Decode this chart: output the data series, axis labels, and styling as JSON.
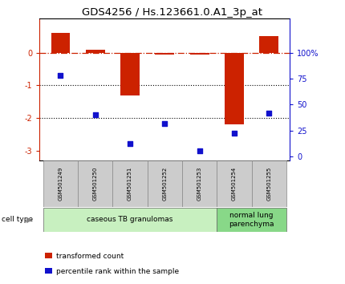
{
  "title": "GDS4256 / Hs.123661.0.A1_3p_at",
  "samples": [
    "GSM501249",
    "GSM501250",
    "GSM501251",
    "GSM501252",
    "GSM501253",
    "GSM501254",
    "GSM501255"
  ],
  "transformed_count": [
    0.6,
    0.08,
    -1.3,
    -0.05,
    -0.05,
    -2.2,
    0.5
  ],
  "percentile_rank": [
    78,
    40,
    12,
    32,
    5,
    22,
    42
  ],
  "ylim_left": [
    -3.3,
    1.05
  ],
  "ylim_right": [
    -3.96,
    133.0
  ],
  "yticks_left": [
    0,
    -1,
    -2,
    -3
  ],
  "yticks_right": [
    0,
    25,
    50,
    75,
    100
  ],
  "bar_color": "#cc2200",
  "dot_color": "#1111cc",
  "dotted_lines": [
    -1,
    -2
  ],
  "right_ytick_labels": [
    "0",
    "25",
    "50",
    "75",
    "100%"
  ],
  "cell_type_label": "cell type",
  "groups": [
    {
      "label": "caseous TB granulomas",
      "indices": [
        0,
        1,
        2,
        3,
        4
      ],
      "color": "#c8f0c0"
    },
    {
      "label": "normal lung\nparenchyma",
      "indices": [
        5,
        6
      ],
      "color": "#88d888"
    }
  ],
  "legend_items": [
    {
      "color": "#cc2200",
      "label": "transformed count"
    },
    {
      "color": "#1111cc",
      "label": "percentile rank within the sample"
    }
  ],
  "bar_width": 0.55,
  "title_fontsize": 9.5,
  "tick_fontsize": 7,
  "label_fontsize": 6.0,
  "group_fontsize": 6.5,
  "bg_color": "#ffffff"
}
